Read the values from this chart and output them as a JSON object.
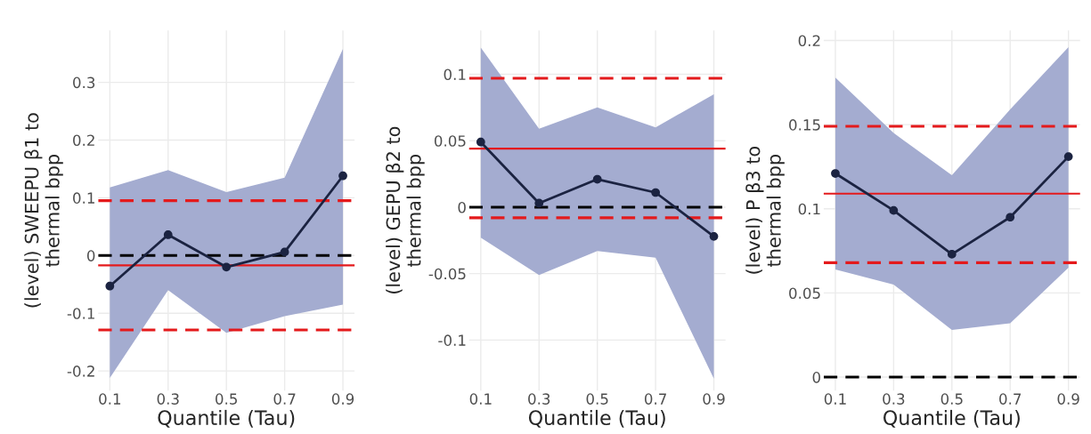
{
  "chart_data": [
    {
      "type": "line",
      "xlabel": "Quantile (Tau)",
      "ylabel": "(level) SWEEPU β1 to\nthermal bpp",
      "x": [
        0.1,
        0.3,
        0.5,
        0.7,
        0.9
      ],
      "series": [
        {
          "color": "#1b2341",
          "values": [
            -0.053,
            0.036,
            -0.02,
            0.006,
            0.138
          ],
          "lower": [
            -0.212,
            -0.06,
            -0.134,
            -0.105,
            -0.085
          ],
          "upper": [
            0.118,
            0.148,
            0.11,
            0.135,
            0.358
          ]
        }
      ],
      "ref_lines": [
        {
          "axis": "y",
          "value": 0,
          "color": "#000000",
          "line_style": "dashed"
        },
        {
          "axis": "y",
          "value": -0.017,
          "color": "#e41a1c",
          "line_style": "solid"
        },
        {
          "axis": "y",
          "value": 0.095,
          "color": "#e41a1c",
          "line_style": "dashed"
        },
        {
          "axis": "y",
          "value": -0.129,
          "color": "#e41a1c",
          "line_style": "dashed"
        }
      ],
      "xlim": [
        0.06,
        0.94
      ],
      "xticks": [
        0.1,
        0.3,
        0.5,
        0.7,
        0.9
      ],
      "ylim": [
        -0.234,
        0.39
      ],
      "yticks": [
        {
          "value": -0.2,
          "label": "-0.2"
        },
        {
          "value": -0.1,
          "label": "-0.1"
        },
        0,
        0.1,
        0.2,
        0.3
      ],
      "grid": true,
      "marker": "circle",
      "line_style": "solid"
    },
    {
      "type": "line",
      "xlabel": "Quantile (Tau)",
      "ylabel": "(level) GEPU β2 to\nthermal bpp",
      "x": [
        0.1,
        0.3,
        0.5,
        0.7,
        0.9
      ],
      "series": [
        {
          "color": "#1b2341",
          "values": [
            0.049,
            0.003,
            0.021,
            0.011,
            -0.022
          ],
          "lower": [
            -0.023,
            -0.051,
            -0.033,
            -0.038,
            -0.129
          ],
          "upper": [
            0.12,
            0.059,
            0.075,
            0.06,
            0.085
          ]
        }
      ],
      "ref_lines": [
        {
          "axis": "y",
          "value": 0,
          "color": "#000000",
          "line_style": "dashed"
        },
        {
          "axis": "y",
          "value": 0.044,
          "color": "#e41a1c",
          "line_style": "solid"
        },
        {
          "axis": "y",
          "value": 0.097,
          "color": "#e41a1c",
          "line_style": "dashed"
        },
        {
          "axis": "y",
          "value": -0.008,
          "color": "#e41a1c",
          "line_style": "dashed"
        }
      ],
      "xlim": [
        0.06,
        0.94
      ],
      "xticks": [
        0.1,
        0.3,
        0.5,
        0.7,
        0.9
      ],
      "ylim": [
        -0.138,
        0.133
      ],
      "yticks": [
        {
          "value": -0.1,
          "label": "-0.1"
        },
        {
          "value": -0.05,
          "label": "-0.05"
        },
        0,
        0.05,
        0.1
      ],
      "grid": true,
      "marker": "circle",
      "line_style": "solid"
    },
    {
      "type": "line",
      "xlabel": "Quantile (Tau)",
      "ylabel": "(level) P β3 to\nthermal bpp",
      "x": [
        0.1,
        0.3,
        0.5,
        0.7,
        0.9
      ],
      "series": [
        {
          "color": "#1b2341",
          "values": [
            0.121,
            0.099,
            0.073,
            0.095,
            0.131
          ],
          "lower": [
            0.064,
            0.055,
            0.028,
            0.032,
            0.065
          ],
          "upper": [
            0.178,
            0.145,
            0.12,
            0.159,
            0.196
          ]
        }
      ],
      "ref_lines": [
        {
          "axis": "y",
          "value": 0,
          "color": "#000000",
          "line_style": "dashed"
        },
        {
          "axis": "y",
          "value": 0.109,
          "color": "#e41a1c",
          "line_style": "solid"
        },
        {
          "axis": "y",
          "value": 0.149,
          "color": "#e41a1c",
          "line_style": "dashed"
        },
        {
          "axis": "y",
          "value": 0.068,
          "color": "#e41a1c",
          "line_style": "dashed"
        }
      ],
      "xlim": [
        0.06,
        0.94
      ],
      "xticks": [
        0.1,
        0.3,
        0.5,
        0.7,
        0.9
      ],
      "ylim": [
        -0.008,
        0.206
      ],
      "yticks": [
        0,
        0.05,
        0.1,
        0.15,
        0.2
      ],
      "grid": true,
      "marker": "circle",
      "line_style": "solid"
    }
  ]
}
